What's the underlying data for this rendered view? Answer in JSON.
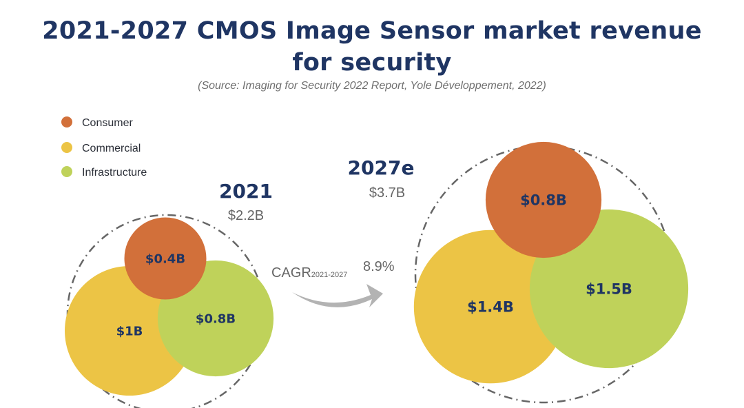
{
  "title_line1": "2021-2027 CMOS Image Sensor market revenue",
  "title_line2": "for security",
  "subtitle": "(Source: Imaging for Security 2022 Report, Yole Développement, 2022)",
  "colors": {
    "consumer": "#d2703a",
    "commercial": "#ecc445",
    "infrastructure": "#bfd25a",
    "text_dark": "#1f3563",
    "dashed_circle": "#666666",
    "arrow": "#b3b3b3"
  },
  "cagr": {
    "label": "CAGR",
    "period": "2021-2027",
    "value": "8.9%"
  },
  "chart_data": {
    "type": "bubble",
    "title": "2021-2027 CMOS Image Sensor market revenue for security",
    "unit": "USD billions",
    "legend": [
      "Consumer",
      "Commercial",
      "Infrastructure"
    ],
    "groups": [
      {
        "year": "2021",
        "total_label": "$2.2B",
        "total": 2.2,
        "segments": [
          {
            "category": "Consumer",
            "value": 0.4,
            "label": "$0.4B"
          },
          {
            "category": "Commercial",
            "value": 1.0,
            "label": "$1B"
          },
          {
            "category": "Infrastructure",
            "value": 0.8,
            "label": "$0.8B"
          }
        ]
      },
      {
        "year": "2027e",
        "total_label": "$3.7B",
        "total": 3.7,
        "segments": [
          {
            "category": "Consumer",
            "value": 0.8,
            "label": "$0.8B"
          },
          {
            "category": "Commercial",
            "value": 1.4,
            "label": "$1.4B"
          },
          {
            "category": "Infrastructure",
            "value": 1.5,
            "label": "$1.5B"
          }
        ]
      }
    ]
  }
}
